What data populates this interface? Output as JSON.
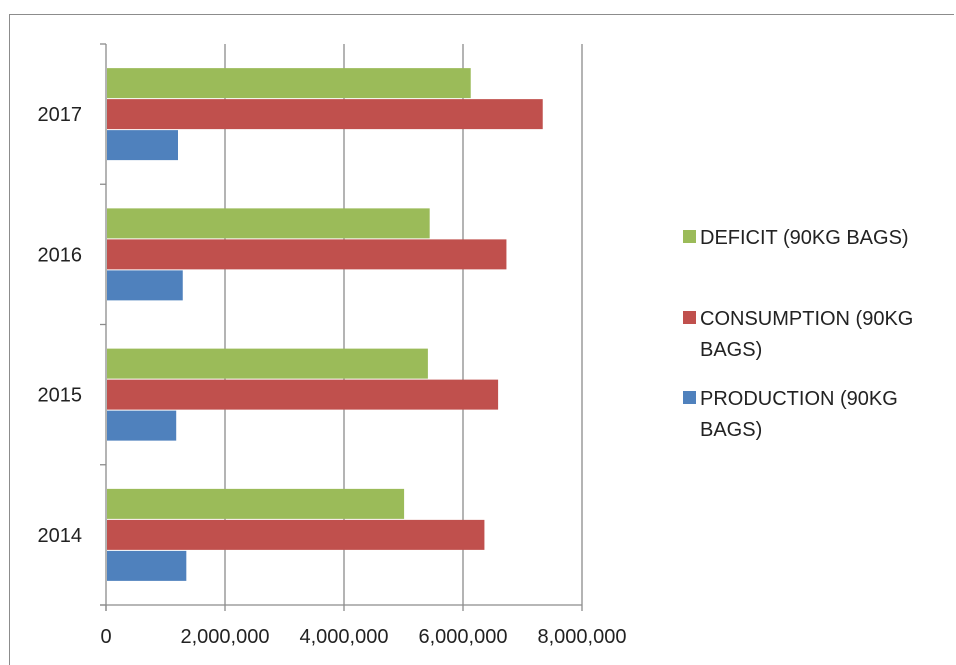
{
  "chart_data": {
    "type": "bar",
    "orientation": "horizontal",
    "categories": [
      "2014",
      "2015",
      "2016",
      "2017"
    ],
    "series": [
      {
        "name": "PRODUCTION (90KG BAGS)",
        "legend_lines": [
          "PRODUCTION (90KG",
          "BAGS)"
        ],
        "color": "#4f81bd",
        "values": [
          1350000,
          1180000,
          1290000,
          1210000
        ]
      },
      {
        "name": "CONSUMPTION (90KG BAGS)",
        "legend_lines": [
          "CONSUMPTION (90KG",
          "BAGS)"
        ],
        "color": "#c0504d",
        "values": [
          6360000,
          6590000,
          6730000,
          7340000
        ]
      },
      {
        "name": "DEFICIT (90KG BAGS)",
        "legend_lines": [
          "DEFICIT (90KG BAGS)"
        ],
        "color": "#9bbb59",
        "values": [
          5010000,
          5410000,
          5440000,
          6130000
        ]
      }
    ],
    "x_ticks": [
      "0",
      "2,000,000",
      "4,000,000",
      "6,000,000",
      "8,000,000"
    ],
    "xlim": [
      0,
      8000000
    ],
    "title": "",
    "xlabel": "",
    "ylabel": "",
    "grid": "vertical",
    "legend_position": "right"
  }
}
